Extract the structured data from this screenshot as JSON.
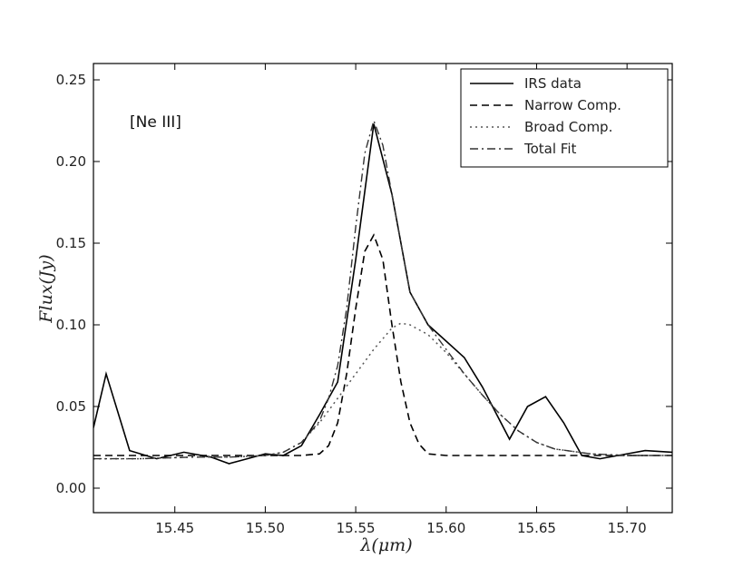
{
  "chart_data": {
    "type": "line",
    "annotation": "[Ne III]",
    "xlabel": "λ(μm)",
    "ylabel": "Flux(Jy)",
    "xlim": [
      15.405,
      15.725
    ],
    "ylim": [
      -0.015,
      0.26
    ],
    "x_ticks": [
      15.45,
      15.5,
      15.55,
      15.6,
      15.65,
      15.7
    ],
    "x_tick_labels": [
      "15.45",
      "15.50",
      "15.55",
      "15.60",
      "15.65",
      "15.70"
    ],
    "y_ticks": [
      0.0,
      0.05,
      0.1,
      0.15,
      0.2,
      0.25
    ],
    "y_tick_labels": [
      "0.00",
      "0.05",
      "0.10",
      "0.15",
      "0.20",
      "0.25"
    ],
    "legend_position": "top-right",
    "grid": false,
    "series": [
      {
        "name": "IRS data",
        "style": "solid",
        "color": "#000000",
        "x": [
          15.405,
          15.412,
          15.425,
          15.44,
          15.455,
          15.47,
          15.48,
          15.49,
          15.5,
          15.51,
          15.52,
          15.53,
          15.54,
          15.55,
          15.56,
          15.57,
          15.58,
          15.59,
          15.6,
          15.61,
          15.62,
          15.635,
          15.645,
          15.655,
          15.665,
          15.675,
          15.685,
          15.695,
          15.71,
          15.725
        ],
        "y": [
          0.037,
          0.07,
          0.023,
          0.018,
          0.022,
          0.019,
          0.015,
          0.018,
          0.021,
          0.02,
          0.026,
          0.045,
          0.065,
          0.14,
          0.223,
          0.18,
          0.12,
          0.1,
          0.09,
          0.08,
          0.062,
          0.03,
          0.05,
          0.056,
          0.04,
          0.02,
          0.018,
          0.02,
          0.023,
          0.022
        ]
      },
      {
        "name": "Narrow Comp.",
        "style": "dashed",
        "color": "#000000",
        "x": [
          15.405,
          15.42,
          15.44,
          15.46,
          15.48,
          15.5,
          15.52,
          15.53,
          15.535,
          15.54,
          15.545,
          15.55,
          15.555,
          15.56,
          15.565,
          15.57,
          15.575,
          15.58,
          15.585,
          15.59,
          15.6,
          15.62,
          15.64,
          15.66,
          15.68,
          15.7,
          15.725
        ],
        "y": [
          0.02,
          0.02,
          0.02,
          0.02,
          0.02,
          0.02,
          0.02,
          0.021,
          0.026,
          0.04,
          0.07,
          0.11,
          0.145,
          0.155,
          0.14,
          0.1,
          0.065,
          0.04,
          0.027,
          0.021,
          0.02,
          0.02,
          0.02,
          0.02,
          0.02,
          0.02,
          0.02
        ]
      },
      {
        "name": "Broad Comp.",
        "style": "dotted",
        "color": "#555555",
        "x": [
          15.405,
          15.43,
          15.46,
          15.48,
          15.5,
          15.51,
          15.52,
          15.53,
          15.54,
          15.55,
          15.56,
          15.57,
          15.575,
          15.58,
          15.59,
          15.6,
          15.61,
          15.62,
          15.63,
          15.64,
          15.65,
          15.66,
          15.68,
          15.7,
          15.725
        ],
        "y": [
          0.018,
          0.018,
          0.019,
          0.019,
          0.02,
          0.022,
          0.028,
          0.04,
          0.055,
          0.07,
          0.085,
          0.098,
          0.101,
          0.1,
          0.094,
          0.083,
          0.07,
          0.057,
          0.045,
          0.035,
          0.028,
          0.024,
          0.021,
          0.02,
          0.02
        ]
      },
      {
        "name": "Total Fit",
        "style": "dashdot",
        "color": "#333333",
        "x": [
          15.405,
          15.43,
          15.46,
          15.48,
          15.5,
          15.51,
          15.52,
          15.53,
          15.535,
          15.54,
          15.545,
          15.55,
          15.555,
          15.56,
          15.565,
          15.57,
          15.575,
          15.58,
          15.59,
          15.6,
          15.61,
          15.62,
          15.63,
          15.64,
          15.65,
          15.66,
          15.68,
          15.7,
          15.725
        ],
        "y": [
          0.018,
          0.018,
          0.019,
          0.019,
          0.02,
          0.022,
          0.028,
          0.041,
          0.055,
          0.075,
          0.11,
          0.16,
          0.205,
          0.225,
          0.21,
          0.18,
          0.15,
          0.12,
          0.1,
          0.085,
          0.07,
          0.057,
          0.045,
          0.035,
          0.028,
          0.024,
          0.021,
          0.02,
          0.02
        ]
      }
    ]
  }
}
